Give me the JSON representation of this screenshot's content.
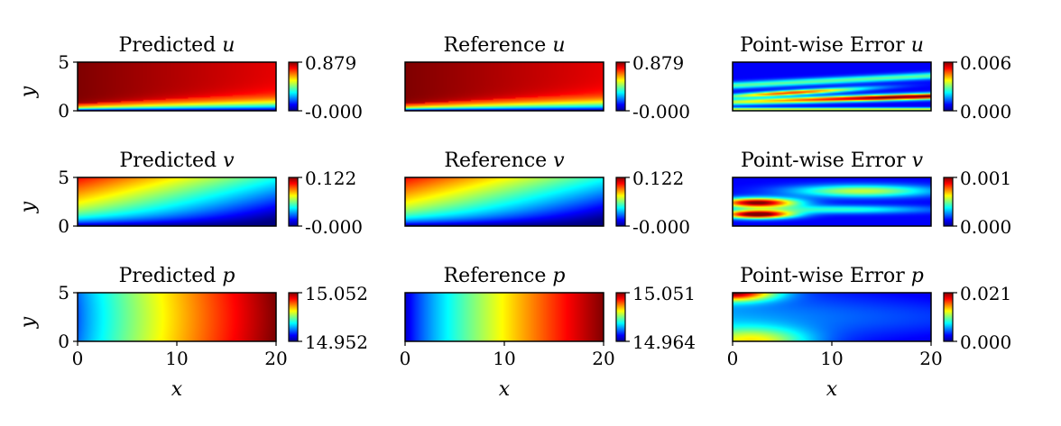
{
  "chart_data": {
    "type": "heatmap",
    "colormap": "jet",
    "x_range": [
      0,
      20
    ],
    "y_range": [
      0,
      5
    ],
    "xticks": [
      "0",
      "10",
      "20"
    ],
    "yticks": [
      "0",
      "5"
    ],
    "xlabel": "x",
    "ylabel": "y",
    "panels": [
      {
        "row": 0,
        "col": 0,
        "title": "Predicted ",
        "var": "u",
        "cbar_max": "0.879",
        "cbar_min": "-0.000",
        "field": "u_pred"
      },
      {
        "row": 0,
        "col": 1,
        "title": "Reference ",
        "var": "u",
        "cbar_max": "0.879",
        "cbar_min": "-0.000",
        "field": "u_ref"
      },
      {
        "row": 0,
        "col": 2,
        "title": "Point-wise Error ",
        "var": "u",
        "cbar_max": "0.006",
        "cbar_min": "0.000",
        "field": "u_err"
      },
      {
        "row": 1,
        "col": 0,
        "title": "Predicted ",
        "var": "v",
        "cbar_max": "0.122",
        "cbar_min": "-0.000",
        "field": "v_pred"
      },
      {
        "row": 1,
        "col": 1,
        "title": "Reference ",
        "var": "v",
        "cbar_max": "0.122",
        "cbar_min": "-0.000",
        "field": "v_ref"
      },
      {
        "row": 1,
        "col": 2,
        "title": "Point-wise Error ",
        "var": "v",
        "cbar_max": "0.001",
        "cbar_min": "0.000",
        "field": "v_err"
      },
      {
        "row": 2,
        "col": 0,
        "title": "Predicted ",
        "var": "p",
        "cbar_max": "15.052",
        "cbar_min": "14.952",
        "field": "p_pred"
      },
      {
        "row": 2,
        "col": 1,
        "title": "Reference ",
        "var": "p",
        "cbar_max": "15.051",
        "cbar_min": "14.964",
        "field": "p_ref"
      },
      {
        "row": 2,
        "col": 2,
        "title": "Point-wise Error ",
        "var": "p",
        "cbar_max": "0.021",
        "cbar_min": "0.000",
        "field": "p_err"
      }
    ]
  }
}
